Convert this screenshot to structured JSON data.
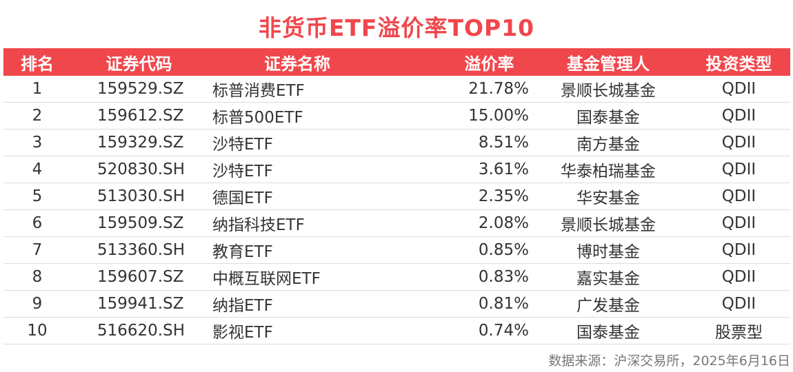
{
  "title": "非货币ETF溢价率TOP10",
  "headers": {
    "rank": "排名",
    "code": "证券代码",
    "name": "证券名称",
    "premium": "溢价率",
    "manager": "基金管理人",
    "type": "投资类型"
  },
  "rows": [
    {
      "rank": "1",
      "code": "159529.SZ",
      "name": "标普消费ETF",
      "premium": "21.78%",
      "manager": "景顺长城基金",
      "type": "QDII"
    },
    {
      "rank": "2",
      "code": "159612.SZ",
      "name": "标普500ETF",
      "premium": "15.00%",
      "manager": "国泰基金",
      "type": "QDII"
    },
    {
      "rank": "3",
      "code": "159329.SZ",
      "name": "沙特ETF",
      "premium": "8.51%",
      "manager": "南方基金",
      "type": "QDII"
    },
    {
      "rank": "4",
      "code": "520830.SH",
      "name": "沙特ETF",
      "premium": "3.61%",
      "manager": "华泰柏瑞基金",
      "type": "QDII"
    },
    {
      "rank": "5",
      "code": "513030.SH",
      "name": "德国ETF",
      "premium": "2.35%",
      "manager": "华安基金",
      "type": "QDII"
    },
    {
      "rank": "6",
      "code": "159509.SZ",
      "name": "纳指科技ETF",
      "premium": "2.08%",
      "manager": "景顺长城基金",
      "type": "QDII"
    },
    {
      "rank": "7",
      "code": "513360.SH",
      "name": "教育ETF",
      "premium": "0.85%",
      "manager": "博时基金",
      "type": "QDII"
    },
    {
      "rank": "8",
      "code": "159607.SZ",
      "name": "中概互联网ETF",
      "premium": "0.83%",
      "manager": "嘉实基金",
      "type": "QDII"
    },
    {
      "rank": "9",
      "code": "159941.SZ",
      "name": "纳指ETF",
      "premium": "0.81%",
      "manager": "广发基金",
      "type": "QDII"
    },
    {
      "rank": "10",
      "code": "516620.SH",
      "name": "影视ETF",
      "premium": "0.74%",
      "manager": "国泰基金",
      "type": "股票型"
    }
  ],
  "footnote": "数据来源：沪深交易所，2025年6月16日",
  "colors": {
    "accent": "#f0474c",
    "header_text": "#ffffff",
    "body_text": "#333333",
    "divider": "#dcdcdc",
    "footnote": "#777777"
  },
  "chart_data": {
    "type": "table",
    "title": "非货币ETF溢价率TOP10",
    "columns": [
      "排名",
      "证券代码",
      "证券名称",
      "溢价率",
      "基金管理人",
      "投资类型"
    ],
    "rows": [
      [
        "1",
        "159529.SZ",
        "标普消费ETF",
        "21.78%",
        "景顺长城基金",
        "QDII"
      ],
      [
        "2",
        "159612.SZ",
        "标普500ETF",
        "15.00%",
        "国泰基金",
        "QDII"
      ],
      [
        "3",
        "159329.SZ",
        "沙特ETF",
        "8.51%",
        "南方基金",
        "QDII"
      ],
      [
        "4",
        "520830.SH",
        "沙特ETF",
        "3.61%",
        "华泰柏瑞基金",
        "QDII"
      ],
      [
        "5",
        "513030.SH",
        "德国ETF",
        "2.35%",
        "华安基金",
        "QDII"
      ],
      [
        "6",
        "159509.SZ",
        "纳指科技ETF",
        "2.08%",
        "景顺长城基金",
        "QDII"
      ],
      [
        "7",
        "513360.SH",
        "教育ETF",
        "0.85%",
        "博时基金",
        "QDII"
      ],
      [
        "8",
        "159607.SZ",
        "中概互联网ETF",
        "0.83%",
        "嘉实基金",
        "QDII"
      ],
      [
        "9",
        "159941.SZ",
        "纳指ETF",
        "0.81%",
        "广发基金",
        "QDII"
      ],
      [
        "10",
        "516620.SH",
        "影视ETF",
        "0.74%",
        "国泰基金",
        "股票型"
      ]
    ]
  }
}
